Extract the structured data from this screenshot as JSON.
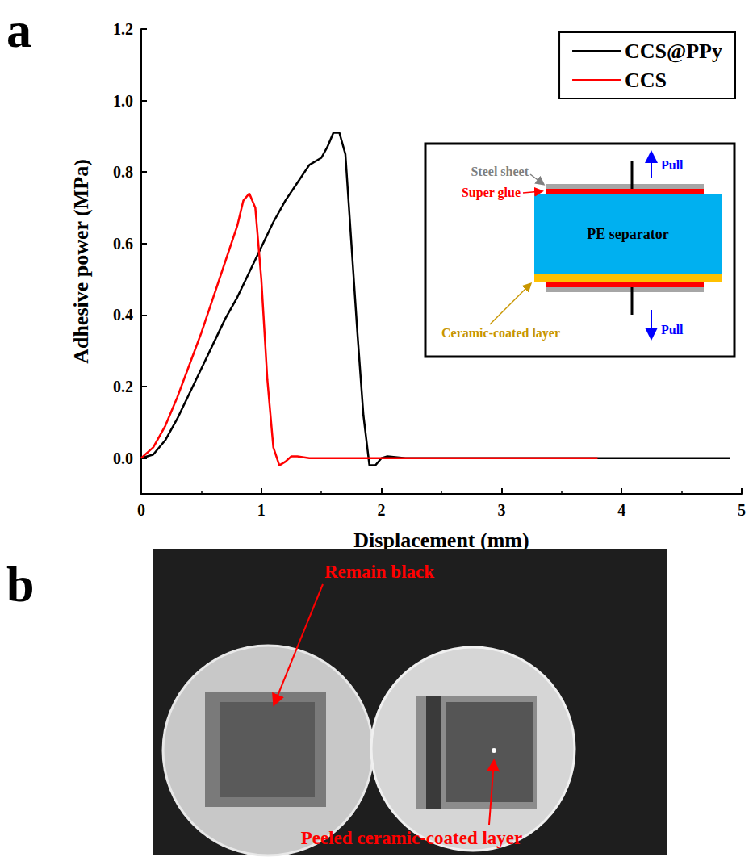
{
  "chart_data": {
    "type": "line",
    "panel": "a",
    "x_label": "Displacement (mm)",
    "y_label": "Adhesive power (MPa)",
    "xlim": [
      0,
      5
    ],
    "xticks": [
      0,
      1,
      2,
      3,
      4,
      5
    ],
    "ylim": [
      -0.1,
      1.2
    ],
    "yticks": [
      {
        "value": 0,
        "label": "0.0"
      },
      0.2,
      0.4,
      0.6,
      0.8,
      {
        "value": 1,
        "label": "1.0"
      },
      {
        "value": 1.2,
        "label": "1.2"
      }
    ],
    "grid": false,
    "legend": "upper right",
    "series": [
      {
        "name": "CCS@PPy",
        "color": "#000000",
        "x": [
          0,
          0.1,
          0.2,
          0.3,
          0.4,
          0.5,
          0.6,
          0.7,
          0.8,
          0.9,
          1.0,
          1.1,
          1.2,
          1.3,
          1.4,
          1.5,
          1.55,
          1.6,
          1.65,
          1.7,
          1.75,
          1.8,
          1.85,
          1.9,
          1.95,
          2.0,
          2.05,
          2.2,
          3,
          4,
          4.9
        ],
        "values": [
          0,
          0.01,
          0.05,
          0.11,
          0.18,
          0.25,
          0.32,
          0.39,
          0.45,
          0.52,
          0.59,
          0.66,
          0.72,
          0.77,
          0.82,
          0.84,
          0.87,
          0.91,
          0.91,
          0.85,
          0.6,
          0.35,
          0.12,
          -0.02,
          -0.02,
          0,
          0.005,
          0,
          0,
          0,
          0
        ]
      },
      {
        "name": "CCS",
        "color": "#ff0000",
        "x": [
          0,
          0.1,
          0.2,
          0.3,
          0.4,
          0.5,
          0.6,
          0.7,
          0.8,
          0.85,
          0.9,
          0.95,
          1.0,
          1.05,
          1.1,
          1.15,
          1.2,
          1.25,
          1.3,
          1.4,
          2,
          3,
          3.8
        ],
        "values": [
          0,
          0.03,
          0.09,
          0.17,
          0.26,
          0.35,
          0.45,
          0.55,
          0.65,
          0.72,
          0.74,
          0.7,
          0.5,
          0.22,
          0.03,
          -0.02,
          -0.01,
          0.005,
          0.005,
          0,
          0,
          0,
          0
        ]
      }
    ],
    "inset": {
      "steel_sheet": "Steel sheet",
      "super_glue": "Super glue",
      "separator": "PE separator",
      "ceramic_layer": "Ceramic-coated layer",
      "pull_top": "Pull",
      "pull_bottom": "Pull"
    }
  },
  "photo": {
    "panel": "b",
    "labels": [
      "Remain black",
      "Peeled ceramic-coated layer"
    ]
  }
}
